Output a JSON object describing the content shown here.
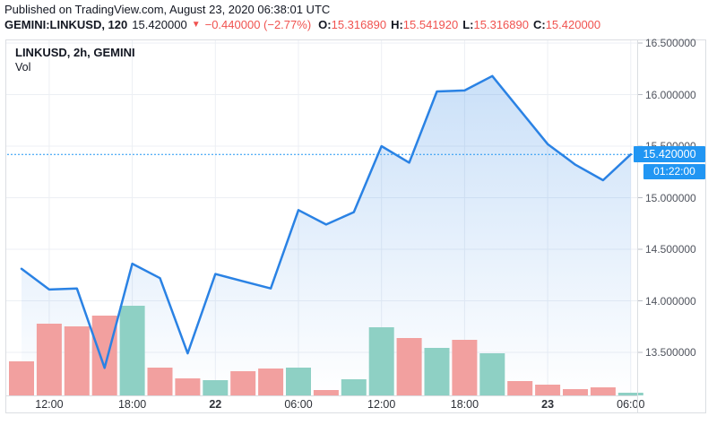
{
  "header": {
    "published": "Published on TradingView.com, August 23, 2020 06:38:01 UTC",
    "symbol_line": {
      "symbol": "GEMINI:LINKUSD, 120",
      "last": "15.420000",
      "direction_arrow": "▼",
      "change": "−0.440000 (−2.77%)",
      "ohlc": [
        {
          "label": "O:",
          "value": "15.316890"
        },
        {
          "label": "H:",
          "value": "15.541920"
        },
        {
          "label": "L:",
          "value": "15.316890"
        },
        {
          "label": "C:",
          "value": "15.420000"
        }
      ]
    }
  },
  "legend": {
    "title": "LINKUSD, 2h, GEMINI",
    "indicator": "Vol"
  },
  "axis": {
    "price_badge": "15.420000",
    "countdown_badge": "01:22:00"
  },
  "colors": {
    "line_blue": "#2a82e4",
    "badge_blue": "#2196f3",
    "area_fill_top": "rgba(42,130,228,0.25)",
    "area_fill_bottom": "rgba(42,130,228,0.0)",
    "volume_up": "#8ed0c4",
    "volume_down": "#f2a09f",
    "gridline": "#eceff4",
    "text_dark": "#131722",
    "text_red": "#f0524f",
    "axis_text": "#50545e"
  },
  "chart_data": {
    "type": "area",
    "title": "LINKUSD, 2h, GEMINI",
    "exchange": "GEMINI",
    "interval": "2h",
    "legend_position": "top-left",
    "grid": true,
    "x_times": [
      "Aug 21 10:00",
      "Aug 21 12:00",
      "Aug 21 14:00",
      "Aug 21 16:00",
      "Aug 21 18:00",
      "Aug 21 20:00",
      "Aug 21 22:00",
      "Aug 22 00:00",
      "Aug 22 02:00",
      "Aug 22 04:00",
      "Aug 22 06:00",
      "Aug 22 08:00",
      "Aug 22 10:00",
      "Aug 22 12:00",
      "Aug 22 14:00",
      "Aug 22 16:00",
      "Aug 22 18:00",
      "Aug 22 20:00",
      "Aug 22 22:00",
      "Aug 23 00:00",
      "Aug 23 02:00",
      "Aug 23 04:00",
      "Aug 23 06:00"
    ],
    "close": [
      14.31,
      14.11,
      14.12,
      13.35,
      14.36,
      14.22,
      13.49,
      14.26,
      14.19,
      14.12,
      14.88,
      14.74,
      14.86,
      15.5,
      15.34,
      16.03,
      16.04,
      16.18,
      15.85,
      15.52,
      15.32,
      15.17,
      15.42
    ],
    "volume_relative": [
      38,
      80,
      77,
      89,
      100,
      31,
      19,
      17,
      27,
      30,
      31,
      6,
      18,
      76,
      64,
      53,
      62,
      47,
      16,
      12,
      7,
      9,
      3
    ],
    "volume_direction": [
      "down",
      "down",
      "down",
      "down",
      "up",
      "down",
      "down",
      "up",
      "down",
      "down",
      "up",
      "down",
      "up",
      "up",
      "down",
      "up",
      "down",
      "up",
      "down",
      "down",
      "down",
      "down",
      "up"
    ],
    "x_tick_labels": [
      {
        "index": 1,
        "label": "12:00",
        "bold": false
      },
      {
        "index": 4,
        "label": "18:00",
        "bold": false
      },
      {
        "index": 7,
        "label": "22",
        "bold": true
      },
      {
        "index": 10,
        "label": "06:00",
        "bold": false
      },
      {
        "index": 13,
        "label": "12:00",
        "bold": false
      },
      {
        "index": 16,
        "label": "18:00",
        "bold": false
      },
      {
        "index": 19,
        "label": "23",
        "bold": true
      },
      {
        "index": 22,
        "label": "06:00",
        "bold": false
      }
    ],
    "y_ticks": [
      {
        "value": 16.5,
        "label": "16.500000"
      },
      {
        "value": 16.0,
        "label": "16.000000"
      },
      {
        "value": 15.5,
        "label": "15.500000"
      },
      {
        "value": 15.0,
        "label": "15.000000"
      },
      {
        "value": 14.5,
        "label": "14.500000"
      },
      {
        "value": 14.0,
        "label": "14.000000"
      },
      {
        "value": 13.5,
        "label": "13.500000"
      }
    ],
    "current_price": 15.42,
    "ohlc_current": {
      "open": 15.31689,
      "high": 15.54192,
      "low": 15.31689,
      "close": 15.42
    },
    "change": -0.44,
    "change_pct": -2.77
  }
}
